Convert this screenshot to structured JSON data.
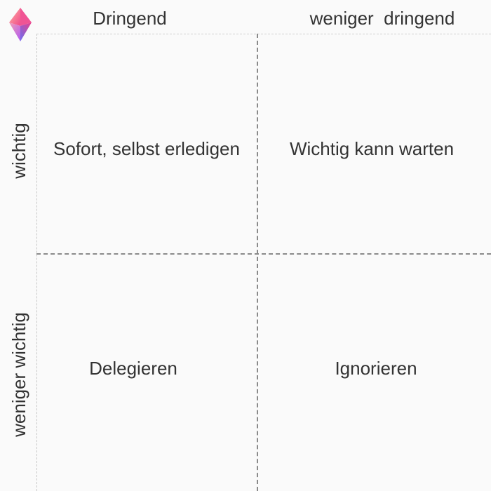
{
  "columns": {
    "urgent": "Dringend",
    "not_urgent": "weniger  dringend"
  },
  "rows": {
    "important": "wichtig",
    "not_important": "weniger wichtig"
  },
  "quadrants": {
    "urgent_important": "Sofort, selbst erledigen",
    "not_urgent_important": "Wichtig kann warten",
    "urgent_not_important": "Delegieren",
    "not_urgent_not_important": "Ignorieren"
  },
  "icons": {
    "logo": "gem-icon"
  },
  "colors": {
    "background": "#fafafa",
    "text": "#333333",
    "divider": "#8a8a8a",
    "logo_gradient": [
      "#f6a5c0",
      "#ef4b8a",
      "#8a5cf0",
      "#5b6fe6"
    ]
  }
}
